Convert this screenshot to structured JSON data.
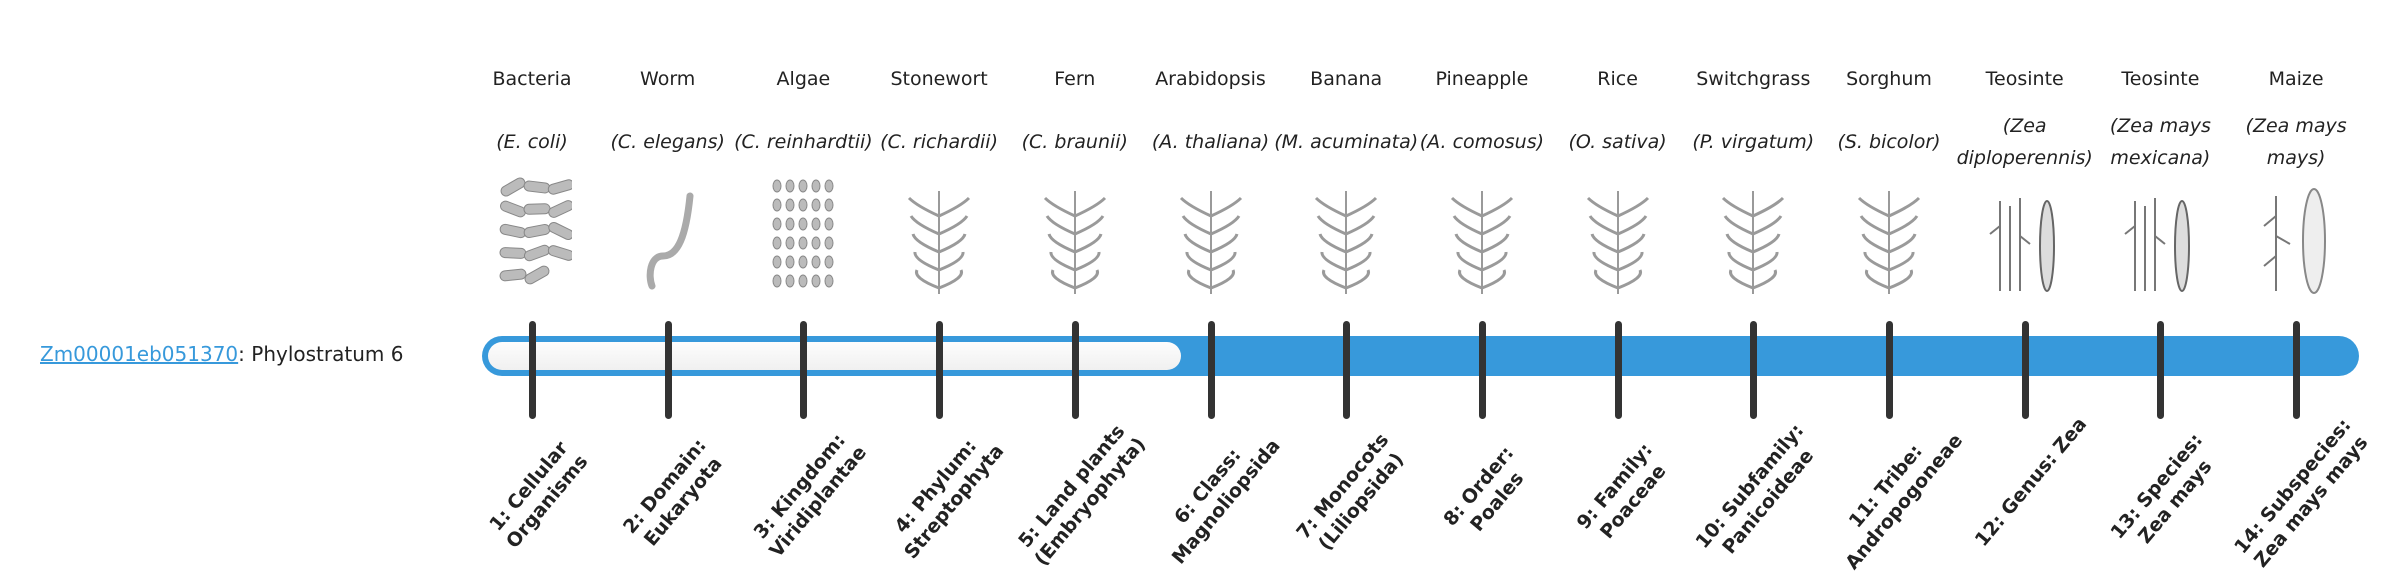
{
  "gene": {
    "id": "Zm00001eb051370",
    "suffix": ": Phylostratum 6"
  },
  "phylostratum_value": 6,
  "colors": {
    "accent": "#3799db",
    "tick": "#333333",
    "empty": "#f5f5f5"
  },
  "columns": [
    {
      "common": "Bacteria",
      "species": "(E. coli)",
      "icon": "bacteria-icon",
      "stratum": "1: Cellular Organisms"
    },
    {
      "common": "Worm",
      "species": "(C. elegans)",
      "icon": "worm-icon",
      "stratum": "2: Domain: Eukaryota"
    },
    {
      "common": "Algae",
      "species": "(C. reinhardtii)",
      "icon": "algae-icon",
      "stratum": "3: Kingdom: Viridiplantae"
    },
    {
      "common": "Stonewort",
      "species": "(C. richardii)",
      "icon": "stonewort-icon",
      "stratum": "4: Phylum: Streptophyta"
    },
    {
      "common": "Fern",
      "species": "(C. braunii)",
      "icon": "fern-icon",
      "stratum": "5: Land plants (Embryophyta)"
    },
    {
      "common": "Arabidopsis",
      "species": "(A. thaliana)",
      "icon": "arabidopsis-icon",
      "stratum": "6: Class: Magnoliopsida"
    },
    {
      "common": "Banana",
      "species": "(M. acuminata)",
      "icon": "banana-icon",
      "stratum": "7: Monocots (Liliopsida)"
    },
    {
      "common": "Pineapple",
      "species": "(A. comosus)",
      "icon": "pineapple-icon",
      "stratum": "8: Order: Poales"
    },
    {
      "common": "Rice",
      "species": "(O. sativa)",
      "icon": "rice-icon",
      "stratum": "9: Family: Poaceae"
    },
    {
      "common": "Switchgrass",
      "species": "(P. virgatum)",
      "icon": "switchgrass-icon",
      "stratum": "10: Subfamily: Panicoideae"
    },
    {
      "common": "Sorghum",
      "species": "(S. bicolor)",
      "icon": "sorghum-icon",
      "stratum": "11: Tribe: Andropogoneae"
    },
    {
      "common": "Teosinte",
      "species": "(Zea diploperennis)",
      "icon": "teosinte-icon",
      "stratum": "12: Genus: Zea"
    },
    {
      "common": "Teosinte",
      "species": "(Zea mays mexicana)",
      "icon": "teosinte-icon",
      "stratum": "13: Species: Zea mays"
    },
    {
      "common": "Maize",
      "species": "(Zea mays mays)",
      "icon": "maize-icon",
      "stratum": "14: Subspecies: Zea mays mays"
    }
  ]
}
